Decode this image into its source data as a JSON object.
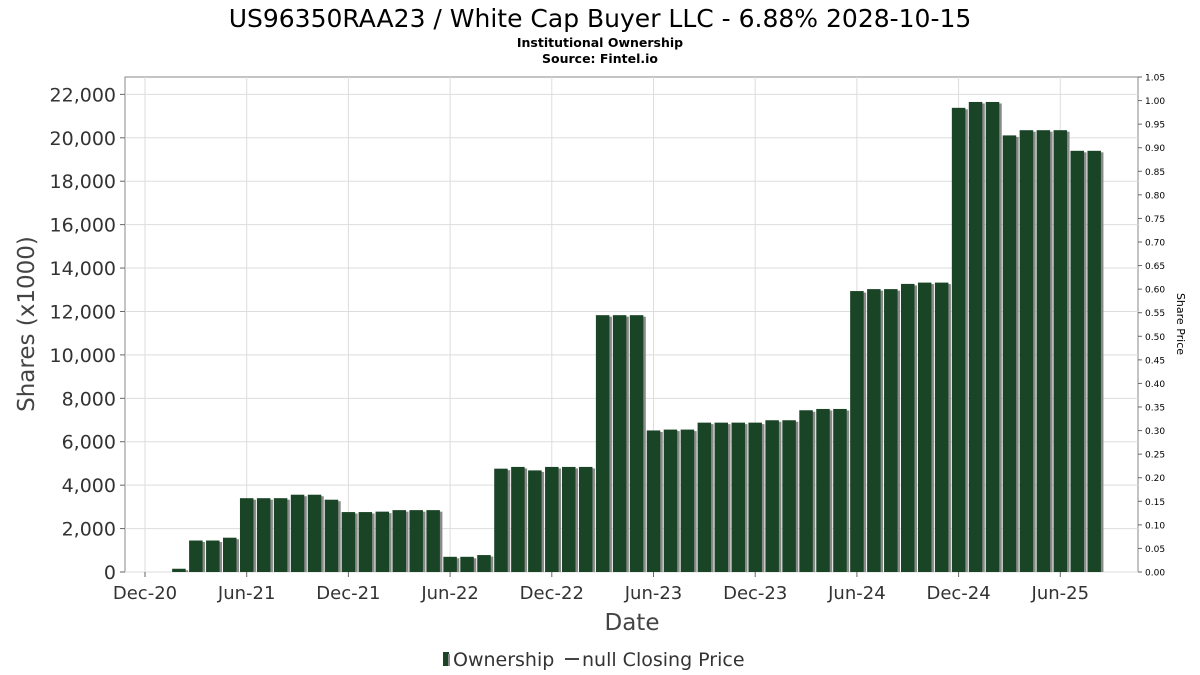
{
  "chart_data": {
    "type": "bar",
    "title": "US96350RAA23 / White Cap Buyer LLC - 6.88% 2028-10-15",
    "subtitle": "Institutional Ownership",
    "source": "Source: Fintel.io",
    "xlabel": "Date",
    "ylabel": "Shares (x1000)",
    "y2label": "Share Price",
    "ylim": [
      0,
      22800
    ],
    "y2lim": [
      0,
      1.05
    ],
    "grid": true,
    "legend_position": "bottom-center",
    "x_tick_labels": [
      "Dec-20",
      "Jun-21",
      "Dec-21",
      "Jun-22",
      "Dec-22",
      "Jun-23",
      "Dec-23",
      "Jun-24",
      "Dec-24",
      "Jun-25"
    ],
    "y_ticks": [
      0,
      2000,
      4000,
      6000,
      8000,
      10000,
      12000,
      14000,
      16000,
      18000,
      20000,
      22000
    ],
    "y_tick_labels": [
      "0",
      "2,000",
      "4,000",
      "6,000",
      "8,000",
      "10,000",
      "12,000",
      "14,000",
      "16,000",
      "18,000",
      "20,000",
      "22,000"
    ],
    "y2_tick_labels": [
      "0.00",
      "0.05",
      "0.10",
      "0.15",
      "0.20",
      "0.25",
      "0.30",
      "0.35",
      "0.40",
      "0.45",
      "0.50",
      "0.55",
      "0.60",
      "0.65",
      "0.70",
      "0.75",
      "0.80",
      "0.85",
      "0.90",
      "0.95",
      "1.00",
      "1.05"
    ],
    "series": [
      {
        "name": "Ownership",
        "color": "#1a4426",
        "shadow_color": "#8a8a8a",
        "x": [
          "2020-12",
          "2021-01",
          "2021-02",
          "2021-03",
          "2021-04",
          "2021-05",
          "2021-06",
          "2021-07",
          "2021-08",
          "2021-09",
          "2021-10",
          "2021-11",
          "2021-12",
          "2022-01",
          "2022-02",
          "2022-03",
          "2022-04",
          "2022-05",
          "2022-06",
          "2022-07",
          "2022-08",
          "2022-09",
          "2022-10",
          "2022-11",
          "2022-12",
          "2023-01",
          "2023-02",
          "2023-03",
          "2023-04",
          "2023-05",
          "2023-06",
          "2023-07",
          "2023-08",
          "2023-09",
          "2023-10",
          "2023-11",
          "2023-12",
          "2024-01",
          "2024-02",
          "2024-03",
          "2024-04",
          "2024-05",
          "2024-06",
          "2024-07",
          "2024-08",
          "2024-09",
          "2024-10",
          "2024-11",
          "2024-12",
          "2025-01",
          "2025-02",
          "2025-03",
          "2025-04",
          "2025-05",
          "2025-06",
          "2025-07",
          "2025-08"
        ],
        "values": [
          0,
          0,
          150,
          1450,
          1450,
          1580,
          3400,
          3400,
          3400,
          3560,
          3560,
          3330,
          2760,
          2760,
          2780,
          2850,
          2850,
          2850,
          700,
          700,
          780,
          4760,
          4840,
          4680,
          4840,
          4840,
          4840,
          11830,
          11830,
          11830,
          6520,
          6560,
          6560,
          6880,
          6880,
          6880,
          6880,
          6990,
          6990,
          7450,
          7510,
          7510,
          12940,
          13030,
          13030,
          13270,
          13330,
          13330,
          21380,
          21650,
          21650,
          20110,
          20350,
          20350,
          20350,
          19400,
          19400
        ]
      },
      {
        "name": "null Closing Price",
        "color": "#444444",
        "values": []
      }
    ]
  }
}
